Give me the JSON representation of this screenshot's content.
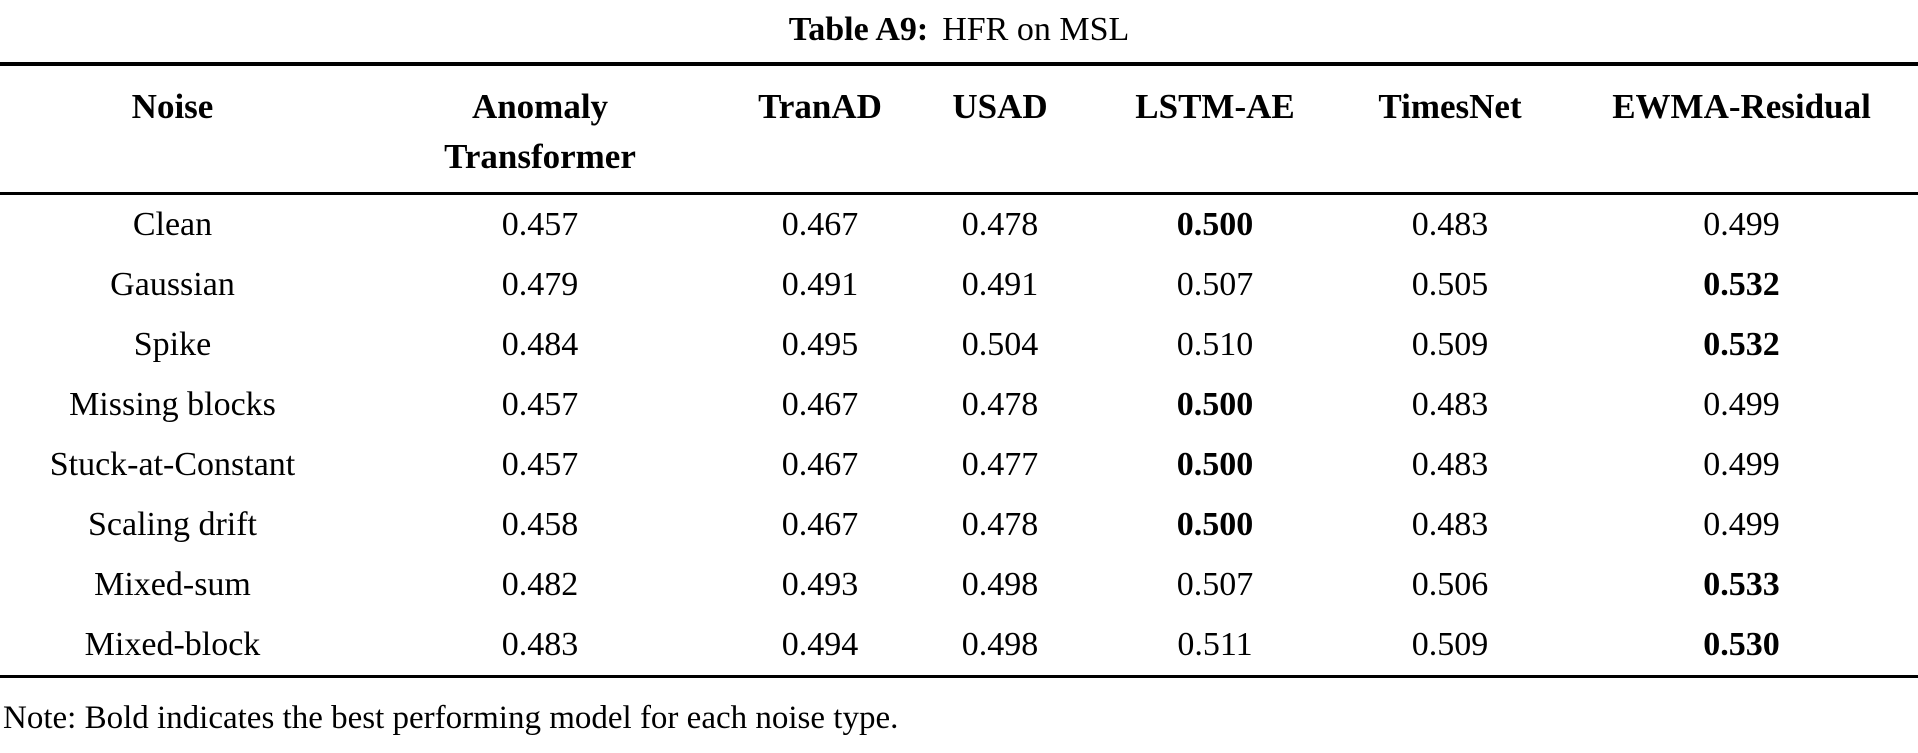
{
  "page": {
    "title_label": "Table A9:",
    "title_text": "HFR on MSL",
    "note": "Note: Bold indicates the best performing model for each noise type."
  },
  "table": {
    "columns": [
      "Noise",
      "Anomaly Transformer",
      "TranAD",
      "USAD",
      "LSTM-AE",
      "TimesNet",
      "EWMA-Residual"
    ],
    "rows": [
      {
        "noise": "Clean",
        "values": [
          "0.457",
          "0.467",
          "0.478",
          "0.500",
          "0.483",
          "0.499"
        ],
        "bold_index": 3
      },
      {
        "noise": "Gaussian",
        "values": [
          "0.479",
          "0.491",
          "0.491",
          "0.507",
          "0.505",
          "0.532"
        ],
        "bold_index": 5
      },
      {
        "noise": "Spike",
        "values": [
          "0.484",
          "0.495",
          "0.504",
          "0.510",
          "0.509",
          "0.532"
        ],
        "bold_index": 5
      },
      {
        "noise": "Missing blocks",
        "values": [
          "0.457",
          "0.467",
          "0.478",
          "0.500",
          "0.483",
          "0.499"
        ],
        "bold_index": 3
      },
      {
        "noise": "Stuck-at-Constant",
        "values": [
          "0.457",
          "0.467",
          "0.477",
          "0.500",
          "0.483",
          "0.499"
        ],
        "bold_index": 3
      },
      {
        "noise": "Scaling drift",
        "values": [
          "0.458",
          "0.467",
          "0.478",
          "0.500",
          "0.483",
          "0.499"
        ],
        "bold_index": 3
      },
      {
        "noise": "Mixed-sum",
        "values": [
          "0.482",
          "0.493",
          "0.498",
          "0.507",
          "0.506",
          "0.533"
        ],
        "bold_index": 5
      },
      {
        "noise": "Mixed-block",
        "values": [
          "0.483",
          "0.494",
          "0.498",
          "0.511",
          "0.509",
          "0.530"
        ],
        "bold_index": 5
      }
    ]
  },
  "chart_data": {
    "type": "table",
    "title": "Table A9: HFR on MSL",
    "columns": [
      "Noise",
      "Anomaly Transformer",
      "TranAD",
      "USAD",
      "LSTM-AE",
      "TimesNet",
      "EWMA-Residual"
    ],
    "rows": [
      [
        "Clean",
        0.457,
        0.467,
        0.478,
        0.5,
        0.483,
        0.499
      ],
      [
        "Gaussian",
        0.479,
        0.491,
        0.491,
        0.507,
        0.505,
        0.532
      ],
      [
        "Spike",
        0.484,
        0.495,
        0.504,
        0.51,
        0.509,
        0.532
      ],
      [
        "Missing blocks",
        0.457,
        0.467,
        0.478,
        0.5,
        0.483,
        0.499
      ],
      [
        "Stuck-at-Constant",
        0.457,
        0.467,
        0.477,
        0.5,
        0.483,
        0.499
      ],
      [
        "Scaling drift",
        0.458,
        0.467,
        0.478,
        0.5,
        0.483,
        0.499
      ],
      [
        "Mixed-sum",
        0.482,
        0.493,
        0.498,
        0.507,
        0.506,
        0.533
      ],
      [
        "Mixed-block",
        0.483,
        0.494,
        0.498,
        0.511,
        0.509,
        0.53
      ]
    ],
    "bold_best_per_row": [
      "LSTM-AE",
      "EWMA-Residual",
      "EWMA-Residual",
      "LSTM-AE",
      "LSTM-AE",
      "LSTM-AE",
      "EWMA-Residual",
      "EWMA-Residual"
    ],
    "footnote": "Note: Bold indicates the best performing model for each noise type."
  }
}
